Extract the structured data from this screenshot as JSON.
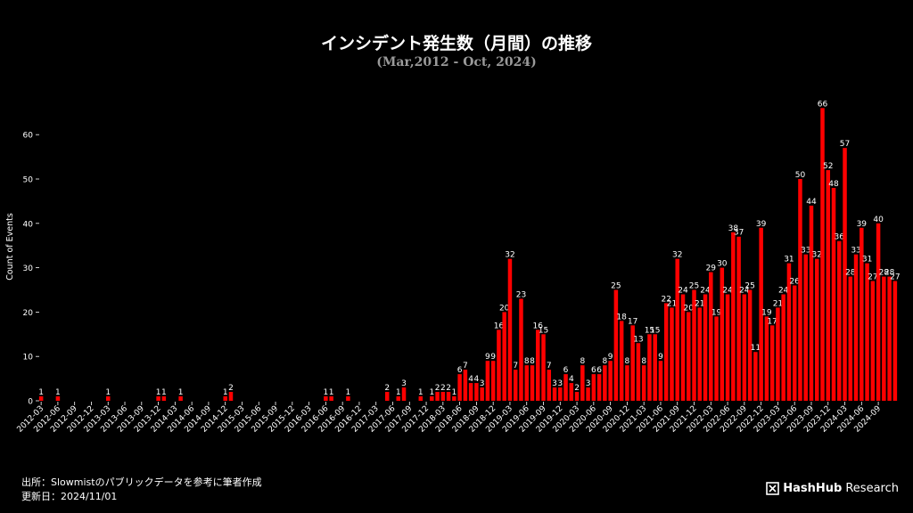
{
  "header": {
    "title": "インシデント発生数（月間）の推移",
    "subtitle": "(Mar,2012 - Oct, 2024)"
  },
  "footer": {
    "source": "出所：Slowmistのパブリックデータを参考に筆者作成",
    "updated": "更新日：2024/11/01",
    "logo_bold": "HashHub",
    "logo_regular": "Research"
  },
  "colors": {
    "bar": "#ff0000",
    "background": "#000000",
    "text": "#ffffff",
    "subtitle": "#9a9a9a"
  },
  "chart_data": {
    "type": "bar",
    "title": "インシデント発生数（月間）の推移",
    "subtitle": "(Mar,2012 - Oct, 2024)",
    "ylabel": "Count of Events",
    "xlabel": "",
    "ylim": [
      0,
      68
    ],
    "yticks": [
      0,
      10,
      20,
      30,
      40,
      50,
      60
    ],
    "grid": false,
    "x_start": "2012-03",
    "tick_labels": [
      "2012-03",
      "2012-06",
      "2012-09",
      "2012-12",
      "2013-03",
      "2013-06",
      "2013-09",
      "2013-12",
      "2014-03",
      "2014-06",
      "2014-09",
      "2014-12",
      "2015-03",
      "2015-06",
      "2015-09",
      "2015-12",
      "2016-03",
      "2016-06",
      "2016-09",
      "2016-12",
      "2017-03",
      "2017-06",
      "2017-09",
      "2017-12",
      "2018-03",
      "2018-06",
      "2018-09",
      "2018-12",
      "2019-03",
      "2019-06",
      "2019-09",
      "2019-12",
      "2020-03",
      "2020-06",
      "2020-09",
      "2020-12",
      "2021-03",
      "2021-06",
      "2021-09",
      "2021-12",
      "2022-03",
      "2022-06",
      "2022-09",
      "2022-12",
      "2023-03",
      "2023-06",
      "2023-09",
      "2023-12",
      "2024-03",
      "2024-06",
      "2024-09"
    ],
    "values": [
      1,
      0,
      0,
      1,
      0,
      0,
      0,
      0,
      0,
      0,
      0,
      0,
      1,
      0,
      0,
      0,
      0,
      0,
      0,
      0,
      0,
      1,
      1,
      0,
      0,
      1,
      0,
      0,
      0,
      0,
      0,
      0,
      0,
      1,
      2,
      0,
      0,
      0,
      0,
      0,
      0,
      0,
      0,
      0,
      0,
      0,
      0,
      0,
      0,
      0,
      0,
      1,
      1,
      0,
      0,
      1,
      0,
      0,
      0,
      0,
      0,
      0,
      2,
      0,
      1,
      3,
      0,
      0,
      1,
      0,
      1,
      2,
      2,
      2,
      1,
      6,
      7,
      4,
      4,
      3,
      9,
      9,
      16,
      20,
      32,
      7,
      23,
      8,
      8,
      16,
      15,
      7,
      3,
      3,
      6,
      4,
      2,
      8,
      3,
      6,
      6,
      8,
      9,
      25,
      18,
      8,
      17,
      13,
      8,
      15,
      15,
      9,
      22,
      21,
      32,
      24,
      20,
      25,
      21,
      24,
      29,
      19,
      30,
      24,
      38,
      37,
      24,
      25,
      11,
      39,
      19,
      17,
      21,
      24,
      31,
      26,
      50,
      33,
      44,
      32,
      66,
      52,
      48,
      36,
      57,
      28,
      33,
      39,
      31,
      27,
      40,
      28,
      28,
      27
    ]
  }
}
